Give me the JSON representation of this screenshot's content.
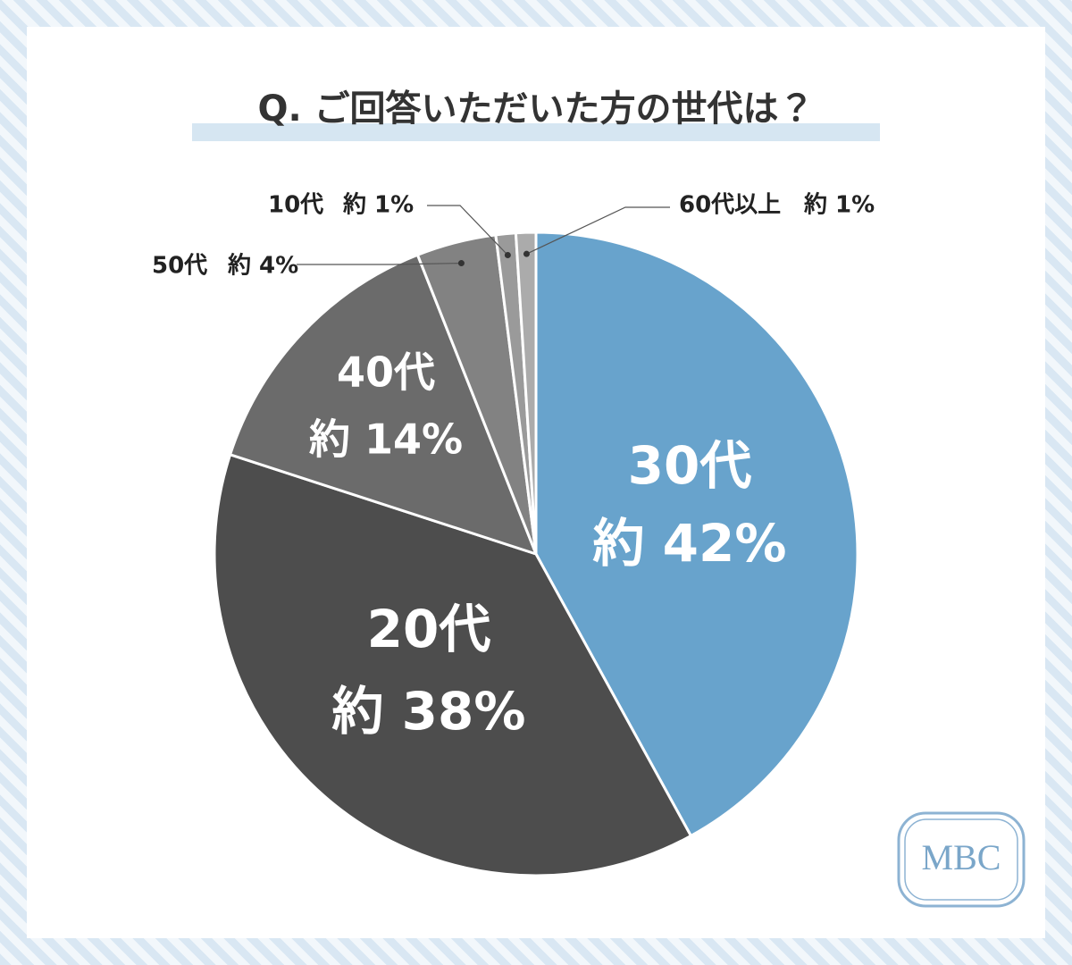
{
  "chart_data": {
    "type": "pie",
    "title": "Q. ご回答いただいた方の世代は？",
    "categories": [
      "30代",
      "20代",
      "40代",
      "50代",
      "10代",
      "60代以上"
    ],
    "values": [
      42,
      38,
      14,
      4,
      1,
      1
    ],
    "value_labels": [
      "約 42%",
      "約 38%",
      "約 14%",
      "約 4%",
      "約 1%",
      "約 1%"
    ],
    "colors": [
      "#68a3cc",
      "#4d4d4d",
      "#6b6b6b",
      "#828282",
      "#9a9a9a",
      "#ababab"
    ]
  },
  "logo": "MBC"
}
